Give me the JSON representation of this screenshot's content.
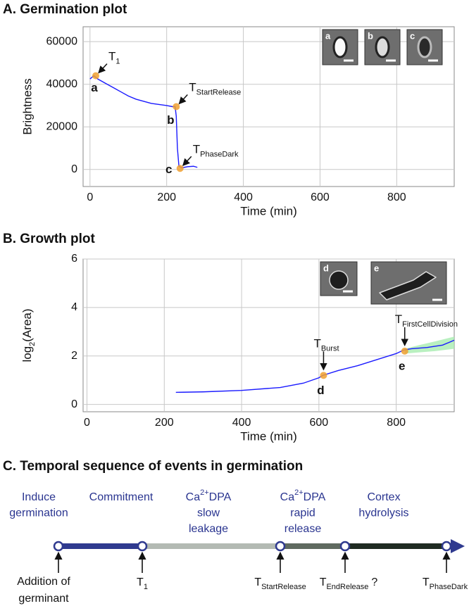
{
  "chart_data": [
    {
      "type": "line",
      "title": "A. Germination plot",
      "xlabel": "Time (min)",
      "ylabel": "Brightness",
      "xlim": [
        -18,
        950
      ],
      "ylim": [
        -8000,
        67000
      ],
      "xticks": [
        0,
        200,
        400,
        600,
        800
      ],
      "yticks": [
        0,
        20000,
        40000,
        60000
      ],
      "grid": true,
      "series": [
        {
          "color": "#1a1aff",
          "x": [
            0,
            10,
            20,
            40,
            60,
            80,
            100,
            120,
            140,
            160,
            180,
            200,
            215,
            222,
            225,
            228,
            232,
            240,
            255,
            270,
            280
          ],
          "values": [
            42500,
            44000,
            42500,
            40500,
            38500,
            36500,
            34500,
            33000,
            32000,
            31000,
            30500,
            30000,
            29500,
            29500,
            25000,
            10000,
            1500,
            800,
            1300,
            1500,
            1000
          ]
        }
      ],
      "events": {
        "color": "#f0a030",
        "labels": [
          "a",
          "b",
          "c"
        ],
        "x": [
          15,
          225,
          235
        ],
        "y": [
          44000,
          29500,
          500
        ],
        "annotations": [
          {
            "base": "T",
            "sub": "1"
          },
          {
            "base": "T",
            "sub": "StartRelease"
          },
          {
            "base": "T",
            "sub": "PhaseDark"
          }
        ]
      },
      "insets": [
        "a",
        "b",
        "c"
      ]
    },
    {
      "type": "line",
      "title": "B. Growth plot",
      "xlabel": "Time (min)",
      "ylabel": {
        "base": "log",
        "sub": "2",
        "rest": "(Area)"
      },
      "xlim": [
        -10,
        950
      ],
      "ylim": [
        -0.3,
        6
      ],
      "xticks": [
        0,
        200,
        400,
        600,
        800
      ],
      "yticks": [
        0,
        2,
        4,
        6
      ],
      "grid": true,
      "series": [
        {
          "color": "#1a1aff",
          "x": [
            230,
            300,
            400,
            500,
            560,
            600,
            610,
            650,
            700,
            750,
            800,
            820,
            840,
            880,
            920,
            950
          ],
          "values": [
            0.5,
            0.52,
            0.58,
            0.7,
            0.88,
            1.1,
            1.2,
            1.4,
            1.6,
            1.85,
            2.1,
            2.25,
            2.3,
            2.35,
            2.45,
            2.65
          ]
        }
      ],
      "band": {
        "color": "#a8ecb0",
        "x": [
          822,
          860,
          900,
          950
        ],
        "lower": [
          2.1,
          2.15,
          2.2,
          2.3
        ],
        "upper": [
          2.3,
          2.45,
          2.6,
          2.8
        ]
      },
      "events": {
        "color": "#f0a030",
        "labels": [
          "d",
          "e"
        ],
        "x": [
          612,
          822
        ],
        "y": [
          1.2,
          2.2
        ],
        "annotations": [
          {
            "base": "T",
            "sub": "Burst"
          },
          {
            "base": "T",
            "sub": "FirstCellDivision"
          }
        ]
      },
      "insets": [
        "d",
        "e"
      ]
    }
  ],
  "timeline": {
    "title": "C. Temporal sequence of events in germination",
    "phases": [
      {
        "lines": [
          [
            "Induce"
          ],
          [
            "germination"
          ]
        ]
      },
      {
        "lines": [
          [
            "Commitment"
          ]
        ]
      },
      {
        "lines": [
          [
            "Ca",
            "2+",
            "DPA"
          ],
          [
            "slow"
          ],
          [
            "leakage"
          ]
        ]
      },
      {
        "lines": [
          [
            "Ca",
            "2+",
            "DPA"
          ],
          [
            "rapid"
          ],
          [
            "release"
          ]
        ]
      },
      {
        "lines": [
          [
            "Cortex"
          ],
          [
            "hydrolysis"
          ]
        ]
      }
    ],
    "markers": [
      {
        "lines": [
          "Addition of",
          "germinant"
        ]
      },
      {
        "base": "T",
        "sub": "1"
      },
      {
        "base": "T",
        "sub": "StartRelease"
      },
      {
        "base": "T",
        "sub": "EndRelease",
        "suffix": "?"
      },
      {
        "base": "T",
        "sub": "PhaseDark"
      }
    ]
  }
}
